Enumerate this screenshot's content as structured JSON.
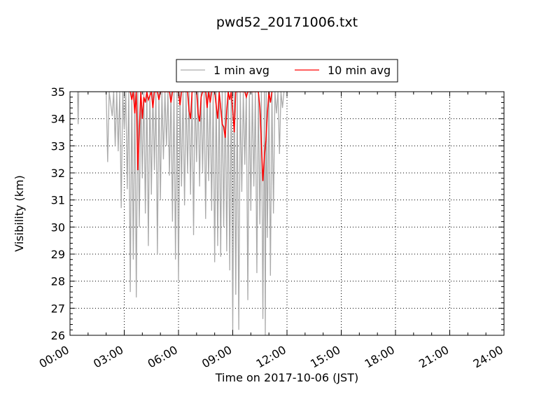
{
  "chart_data": {
    "type": "line",
    "title": "pwd52_20171006.txt",
    "xlabel": "Time on 2017-10-06 (JST)",
    "ylabel": "Visibility (km)",
    "xlim": [
      "00:00",
      "24:00"
    ],
    "ylim": [
      26,
      35
    ],
    "x_ticks": [
      "00:00",
      "03:00",
      "06:00",
      "09:00",
      "12:00",
      "15:00",
      "18:00",
      "21:00",
      "24:00"
    ],
    "y_ticks": [
      26,
      27,
      28,
      29,
      30,
      31,
      32,
      33,
      34,
      35
    ],
    "grid": true,
    "legend_position": "top-center",
    "series": [
      {
        "name": "1 min avg",
        "color": "#aaaaaa",
        "points": [
          [
            "00:25",
            35.0
          ],
          [
            "00:27",
            33.8
          ],
          [
            "00:29",
            35.0
          ],
          [
            "00:35",
            35.0
          ],
          [
            "02:00",
            35.0
          ],
          [
            "02:05",
            32.4
          ],
          [
            "02:10",
            35.0
          ],
          [
            "02:20",
            34.1
          ],
          [
            "02:25",
            35.0
          ],
          [
            "02:30",
            33.0
          ],
          [
            "02:35",
            35.0
          ],
          [
            "02:40",
            32.8
          ],
          [
            "02:45",
            35.0
          ],
          [
            "02:50",
            30.7
          ],
          [
            "02:55",
            35.0
          ],
          [
            "03:00",
            33.6
          ],
          [
            "03:05",
            35.0
          ],
          [
            "03:10",
            31.4
          ],
          [
            "03:15",
            35.0
          ],
          [
            "03:20",
            27.6
          ],
          [
            "03:25",
            35.0
          ],
          [
            "03:30",
            28.8
          ],
          [
            "03:35",
            35.0
          ],
          [
            "03:40",
            27.4
          ],
          [
            "03:45",
            35.0
          ],
          [
            "03:50",
            30.0
          ],
          [
            "03:55",
            35.0
          ],
          [
            "04:00",
            31.8
          ],
          [
            "04:05",
            35.0
          ],
          [
            "04:10",
            30.5
          ],
          [
            "04:15",
            35.0
          ],
          [
            "04:20",
            29.3
          ],
          [
            "04:25",
            35.0
          ],
          [
            "04:30",
            31.2
          ],
          [
            "04:35",
            35.0
          ],
          [
            "04:40",
            32.1
          ],
          [
            "04:45",
            35.0
          ],
          [
            "04:50",
            29.0
          ],
          [
            "04:55",
            35.0
          ],
          [
            "05:00",
            31.0
          ],
          [
            "05:05",
            35.0
          ],
          [
            "05:10",
            32.5
          ],
          [
            "05:15",
            35.0
          ],
          [
            "05:20",
            33.0
          ],
          [
            "05:25",
            35.0
          ],
          [
            "05:30",
            31.9
          ],
          [
            "05:35",
            35.0
          ],
          [
            "05:40",
            30.2
          ],
          [
            "05:45",
            35.0
          ],
          [
            "05:50",
            28.8
          ],
          [
            "05:55",
            35.0
          ],
          [
            "06:00",
            28.0
          ],
          [
            "06:05",
            35.0
          ],
          [
            "06:10",
            31.5
          ],
          [
            "06:15",
            35.0
          ],
          [
            "06:20",
            30.8
          ],
          [
            "06:25",
            35.0
          ],
          [
            "06:30",
            32.0
          ],
          [
            "06:35",
            35.0
          ],
          [
            "06:40",
            31.2
          ],
          [
            "06:45",
            35.0
          ],
          [
            "06:50",
            29.7
          ],
          [
            "06:55",
            35.0
          ],
          [
            "07:00",
            32.4
          ],
          [
            "07:05",
            35.0
          ],
          [
            "07:10",
            31.5
          ],
          [
            "07:15",
            35.0
          ],
          [
            "07:20",
            32.0
          ],
          [
            "07:25",
            35.0
          ],
          [
            "07:30",
            30.3
          ],
          [
            "07:35",
            35.0
          ],
          [
            "07:40",
            31.7
          ],
          [
            "07:45",
            35.0
          ],
          [
            "07:50",
            30.6
          ],
          [
            "07:55",
            35.0
          ],
          [
            "08:00",
            28.7
          ],
          [
            "08:05",
            35.0
          ],
          [
            "08:10",
            29.3
          ],
          [
            "08:15",
            35.0
          ],
          [
            "08:20",
            28.9
          ],
          [
            "08:25",
            35.0
          ],
          [
            "08:30",
            30.0
          ],
          [
            "08:35",
            35.0
          ],
          [
            "08:40",
            29.1
          ],
          [
            "08:45",
            35.0
          ],
          [
            "08:50",
            28.4
          ],
          [
            "08:55",
            35.0
          ],
          [
            "09:00",
            26.2
          ],
          [
            "09:05",
            35.0
          ],
          [
            "09:10",
            27.5
          ],
          [
            "09:15",
            35.0
          ],
          [
            "09:20",
            26.2
          ],
          [
            "09:25",
            35.0
          ],
          [
            "09:30",
            31.3
          ],
          [
            "09:35",
            35.0
          ],
          [
            "09:40",
            32.3
          ],
          [
            "09:45",
            35.0
          ],
          [
            "09:50",
            27.3
          ],
          [
            "09:55",
            35.0
          ],
          [
            "10:00",
            30.6
          ],
          [
            "10:05",
            35.0
          ],
          [
            "10:10",
            31.5
          ],
          [
            "10:15",
            35.0
          ],
          [
            "10:20",
            28.3
          ],
          [
            "10:25",
            35.0
          ],
          [
            "10:30",
            30.1
          ],
          [
            "10:35",
            35.0
          ],
          [
            "10:40",
            26.6
          ],
          [
            "10:45",
            35.0
          ],
          [
            "10:48",
            26.0
          ],
          [
            "10:51",
            35.0
          ],
          [
            "10:55",
            29.6
          ],
          [
            "11:00",
            35.0
          ],
          [
            "11:05",
            28.2
          ],
          [
            "11:10",
            35.0
          ],
          [
            "11:15",
            30.5
          ],
          [
            "11:20",
            35.0
          ],
          [
            "11:25",
            34.2
          ],
          [
            "11:30",
            35.0
          ],
          [
            "11:35",
            32.7
          ],
          [
            "11:40",
            35.0
          ],
          [
            "11:45",
            34.4
          ],
          [
            "11:50",
            35.0
          ]
        ]
      },
      {
        "name": "10 min avg",
        "color": "#ff0000",
        "points": [
          [
            "03:20",
            35.0
          ],
          [
            "03:25",
            34.7
          ],
          [
            "03:30",
            35.0
          ],
          [
            "03:35",
            34.2
          ],
          [
            "03:40",
            35.0
          ],
          [
            "03:45",
            32.1
          ],
          [
            "03:50",
            33.6
          ],
          [
            "03:55",
            35.0
          ],
          [
            "04:00",
            34.0
          ],
          [
            "04:05",
            34.8
          ],
          [
            "04:10",
            34.6
          ],
          [
            "04:15",
            35.0
          ],
          [
            "04:20",
            34.7
          ],
          [
            "04:30",
            35.0
          ],
          [
            "04:35",
            34.4
          ],
          [
            "04:40",
            35.0
          ],
          [
            "04:50",
            35.0
          ],
          [
            "04:55",
            34.7
          ],
          [
            "05:00",
            35.0
          ],
          [
            "05:30",
            35.0
          ],
          [
            "05:35",
            34.6
          ],
          [
            "05:40",
            35.0
          ],
          [
            "06:00",
            35.0
          ],
          [
            "06:05",
            34.5
          ],
          [
            "06:10",
            35.0
          ],
          [
            "06:30",
            35.0
          ],
          [
            "06:35",
            34.3
          ],
          [
            "06:40",
            34.0
          ],
          [
            "06:45",
            35.0
          ],
          [
            "07:00",
            35.0
          ],
          [
            "07:05",
            34.2
          ],
          [
            "07:10",
            33.9
          ],
          [
            "07:15",
            34.8
          ],
          [
            "07:20",
            35.0
          ],
          [
            "07:30",
            35.0
          ],
          [
            "07:35",
            34.4
          ],
          [
            "07:40",
            35.0
          ],
          [
            "07:45",
            34.6
          ],
          [
            "07:50",
            35.0
          ],
          [
            "08:00",
            35.0
          ],
          [
            "08:05",
            34.5
          ],
          [
            "08:10",
            34.0
          ],
          [
            "08:15",
            35.0
          ],
          [
            "08:20",
            34.4
          ],
          [
            "08:25",
            33.8
          ],
          [
            "08:30",
            33.7
          ],
          [
            "08:35",
            33.3
          ],
          [
            "08:40",
            34.3
          ],
          [
            "08:45",
            35.0
          ],
          [
            "08:50",
            34.7
          ],
          [
            "08:55",
            35.0
          ],
          [
            "09:00",
            34.3
          ],
          [
            "09:05",
            33.5
          ],
          [
            "09:10",
            35.0
          ],
          [
            "09:40",
            35.0
          ],
          [
            "09:45",
            34.8
          ],
          [
            "09:50",
            35.0
          ],
          [
            "10:25",
            35.0
          ],
          [
            "10:30",
            34.4
          ],
          [
            "10:35",
            33.1
          ],
          [
            "10:40",
            31.7
          ],
          [
            "10:45",
            32.6
          ],
          [
            "10:50",
            33.2
          ],
          [
            "10:55",
            34.2
          ],
          [
            "11:00",
            35.0
          ],
          [
            "11:05",
            34.6
          ],
          [
            "11:10",
            35.0
          ]
        ]
      }
    ]
  }
}
